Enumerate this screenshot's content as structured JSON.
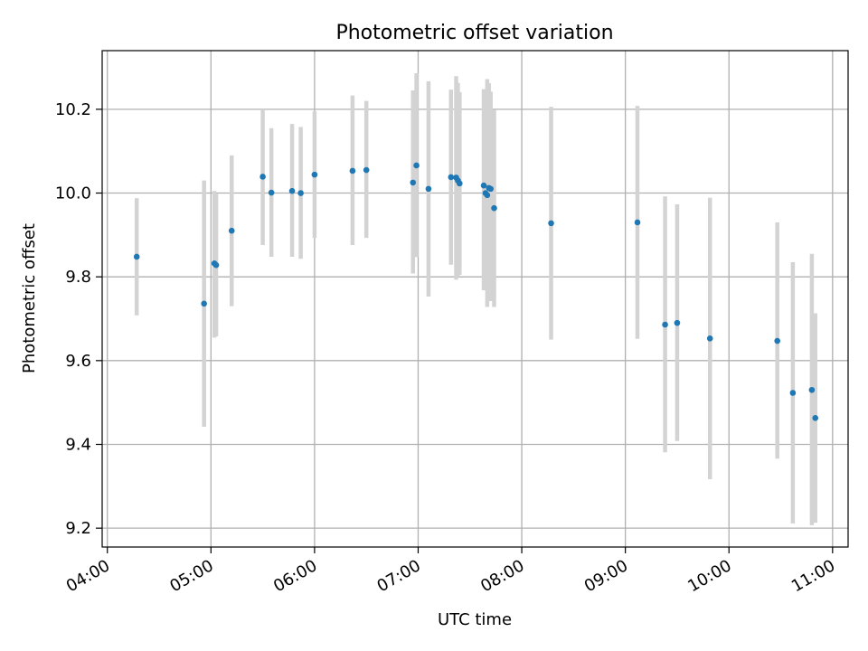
{
  "chart_data": {
    "type": "scatter",
    "title": "Photometric offset variation",
    "xlabel": "UTC time",
    "ylabel": "Photometric offset",
    "xlim_hours": [
      3.95,
      11.15
    ],
    "ylim": [
      9.155,
      10.34
    ],
    "x_ticks": [
      {
        "hour": 4,
        "label": "04:00"
      },
      {
        "hour": 5,
        "label": "05:00"
      },
      {
        "hour": 6,
        "label": "06:00"
      },
      {
        "hour": 7,
        "label": "07:00"
      },
      {
        "hour": 8,
        "label": "08:00"
      },
      {
        "hour": 9,
        "label": "09:00"
      },
      {
        "hour": 10,
        "label": "10:00"
      },
      {
        "hour": 11,
        "label": "11:00"
      }
    ],
    "y_ticks": [
      {
        "value": 9.2,
        "label": "9.2"
      },
      {
        "value": 9.4,
        "label": "9.4"
      },
      {
        "value": 9.6,
        "label": "9.6"
      },
      {
        "value": 9.8,
        "label": "9.8"
      },
      {
        "value": 10.0,
        "label": "10.0"
      },
      {
        "value": 10.2,
        "label": "10.2"
      }
    ],
    "grid": true,
    "colors": {
      "point": "#1f77b4",
      "errorbar": "#d3d3d3",
      "grid": "#b0b0b0"
    },
    "points": [
      {
        "t": "04:17",
        "y": 9.848,
        "lo": 9.708,
        "hi": 9.988
      },
      {
        "t": "04:56",
        "y": 9.736,
        "lo": 9.442,
        "hi": 10.03
      },
      {
        "t": "05:02",
        "y": 9.832,
        "lo": 9.655,
        "hi": 10.005
      },
      {
        "t": "05:03",
        "y": 9.828,
        "lo": 9.658,
        "hi": 9.998
      },
      {
        "t": "05:12",
        "y": 9.91,
        "lo": 9.73,
        "hi": 10.09
      },
      {
        "t": "05:30",
        "y": 10.039,
        "lo": 9.876,
        "hi": 10.2
      },
      {
        "t": "05:35",
        "y": 10.001,
        "lo": 9.848,
        "hi": 10.155
      },
      {
        "t": "05:47",
        "y": 10.005,
        "lo": 9.848,
        "hi": 10.165
      },
      {
        "t": "05:52",
        "y": 10.0,
        "lo": 9.843,
        "hi": 10.158
      },
      {
        "t": "06:00",
        "y": 10.044,
        "lo": 9.893,
        "hi": 10.195
      },
      {
        "t": "06:22",
        "y": 10.053,
        "lo": 9.876,
        "hi": 10.233
      },
      {
        "t": "06:30",
        "y": 10.055,
        "lo": 9.893,
        "hi": 10.22
      },
      {
        "t": "06:57",
        "y": 10.025,
        "lo": 9.808,
        "hi": 10.245
      },
      {
        "t": "06:59",
        "y": 10.066,
        "lo": 9.847,
        "hi": 10.286
      },
      {
        "t": "07:06",
        "y": 10.01,
        "lo": 9.753,
        "hi": 10.267
      },
      {
        "t": "07:19",
        "y": 10.038,
        "lo": 9.829,
        "hi": 10.247
      },
      {
        "t": "07:22",
        "y": 10.037,
        "lo": 9.793,
        "hi": 10.279
      },
      {
        "t": "07:23",
        "y": 10.03,
        "lo": 9.8,
        "hi": 10.263
      },
      {
        "t": "07:24",
        "y": 10.023,
        "lo": 9.805,
        "hi": 10.241
      },
      {
        "t": "07:38",
        "y": 10.018,
        "lo": 9.768,
        "hi": 10.248
      },
      {
        "t": "07:39",
        "y": 10.0,
        "lo": 9.768,
        "hi": 10.232
      },
      {
        "t": "07:40",
        "y": 9.995,
        "lo": 9.728,
        "hi": 10.272
      },
      {
        "t": "07:41",
        "y": 10.012,
        "lo": 9.752,
        "hi": 10.262
      },
      {
        "t": "07:42",
        "y": 10.01,
        "lo": 9.742,
        "hi": 10.242
      },
      {
        "t": "07:44",
        "y": 9.964,
        "lo": 9.728,
        "hi": 10.198
      },
      {
        "t": "08:17",
        "y": 9.928,
        "lo": 9.65,
        "hi": 10.206
      },
      {
        "t": "09:07",
        "y": 9.93,
        "lo": 9.652,
        "hi": 10.208
      },
      {
        "t": "09:23",
        "y": 9.686,
        "lo": 9.381,
        "hi": 9.992
      },
      {
        "t": "09:30",
        "y": 9.69,
        "lo": 9.408,
        "hi": 9.973
      },
      {
        "t": "09:49",
        "y": 9.653,
        "lo": 9.317,
        "hi": 9.989
      },
      {
        "t": "10:28",
        "y": 9.647,
        "lo": 9.366,
        "hi": 9.93
      },
      {
        "t": "10:37",
        "y": 9.523,
        "lo": 9.211,
        "hi": 9.835
      },
      {
        "t": "10:48",
        "y": 9.53,
        "lo": 9.207,
        "hi": 9.855
      },
      {
        "t": "10:50",
        "y": 9.463,
        "lo": 9.213,
        "hi": 9.713
      }
    ]
  }
}
